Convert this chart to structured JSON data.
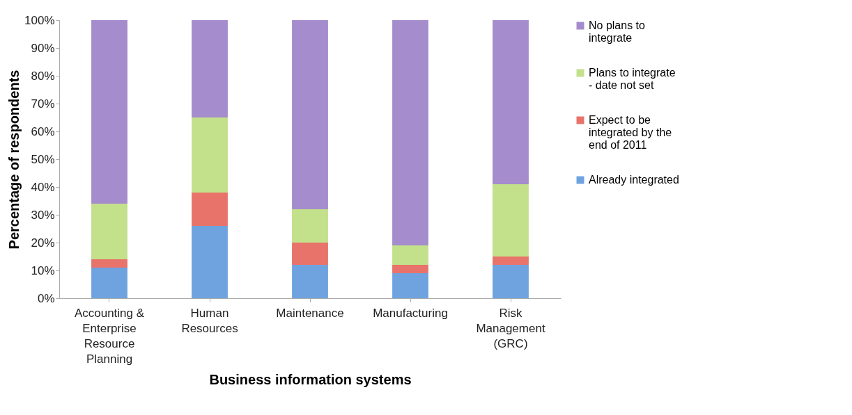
{
  "chart_data": {
    "type": "bar",
    "stacked": true,
    "xlabel": "Business information systems",
    "ylabel": "Percentage of respondents",
    "categories": [
      "Accounting & Enterprise Resource Planning",
      "Human Resources",
      "Maintenance",
      "Manufacturing",
      "Risk Management (GRC)"
    ],
    "series": [
      {
        "name": "Already integrated",
        "color": "#6fa3e0",
        "values": [
          11,
          26,
          12,
          9,
          12
        ]
      },
      {
        "name": "Expect to be integrated by the end of 2011",
        "color": "#e8736a",
        "values": [
          3,
          12,
          8,
          3,
          3
        ]
      },
      {
        "name": "Plans to integrate - date not set",
        "color": "#c3e08a",
        "values": [
          20,
          27,
          12,
          7,
          26
        ]
      },
      {
        "name": "No plans to integrate",
        "color": "#a58ccc",
        "values": [
          66,
          35,
          68,
          81,
          59
        ]
      }
    ],
    "ylim": [
      0,
      100
    ],
    "yticks": [
      {
        "value": 0,
        "label": "0%"
      },
      {
        "value": 10,
        "label": "10%"
      },
      {
        "value": 20,
        "label": "20%"
      },
      {
        "value": 30,
        "label": "30%"
      },
      {
        "value": 40,
        "label": "40%"
      },
      {
        "value": 50,
        "label": "50%"
      },
      {
        "value": 60,
        "label": "60%"
      },
      {
        "value": 70,
        "label": "70%"
      },
      {
        "value": 80,
        "label": "80%"
      },
      {
        "value": 90,
        "label": "90%"
      },
      {
        "value": 100,
        "label": "100%"
      }
    ],
    "grid": false,
    "legend": "right"
  }
}
